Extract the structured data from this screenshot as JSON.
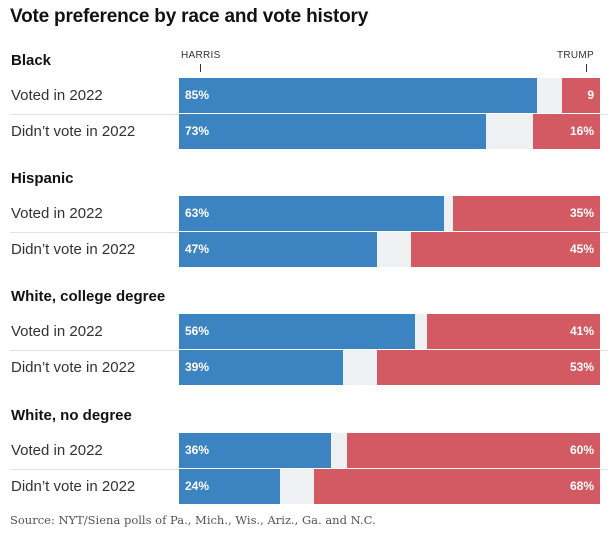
{
  "title": "Vote preference by race and vote history",
  "source": "Source: NYT/Siena polls of Pa., Mich., Wis., Ariz., Ga. and N.C.",
  "chart_data": {
    "type": "bar",
    "orientation": "horizontal",
    "stacked": true,
    "title": "Vote preference by race and vote history",
    "column_labels": [
      "HARRIS",
      "TRUMP"
    ],
    "xlim": [
      0,
      100
    ],
    "groups": [
      {
        "name": "Black",
        "rows": [
          {
            "label": "Voted in 2022",
            "harris": 85,
            "trump": 9,
            "harris_label": "85%",
            "trump_label": "9"
          },
          {
            "label": "Didn’t vote in 2022",
            "harris": 73,
            "trump": 16,
            "harris_label": "73%",
            "trump_label": "16%"
          }
        ]
      },
      {
        "name": "Hispanic",
        "rows": [
          {
            "label": "Voted in 2022",
            "harris": 63,
            "trump": 35,
            "harris_label": "63%",
            "trump_label": "35%"
          },
          {
            "label": "Didn’t vote in 2022",
            "harris": 47,
            "trump": 45,
            "harris_label": "47%",
            "trump_label": "45%"
          }
        ]
      },
      {
        "name": "White, college degree",
        "rows": [
          {
            "label": "Voted in 2022",
            "harris": 56,
            "trump": 41,
            "harris_label": "56%",
            "trump_label": "41%"
          },
          {
            "label": "Didn’t vote in 2022",
            "harris": 39,
            "trump": 53,
            "harris_label": "39%",
            "trump_label": "53%"
          }
        ]
      },
      {
        "name": "White, no degree",
        "rows": [
          {
            "label": "Voted in 2022",
            "harris": 36,
            "trump": 60,
            "harris_label": "36%",
            "trump_label": "60%"
          },
          {
            "label": "Didn’t vote in 2022",
            "harris": 24,
            "trump": 68,
            "harris_label": "24%",
            "trump_label": "68%"
          }
        ]
      }
    ],
    "colors": {
      "harris": "#3b83c1",
      "trump": "#d35a63",
      "remainder": "#eef0f1"
    }
  }
}
